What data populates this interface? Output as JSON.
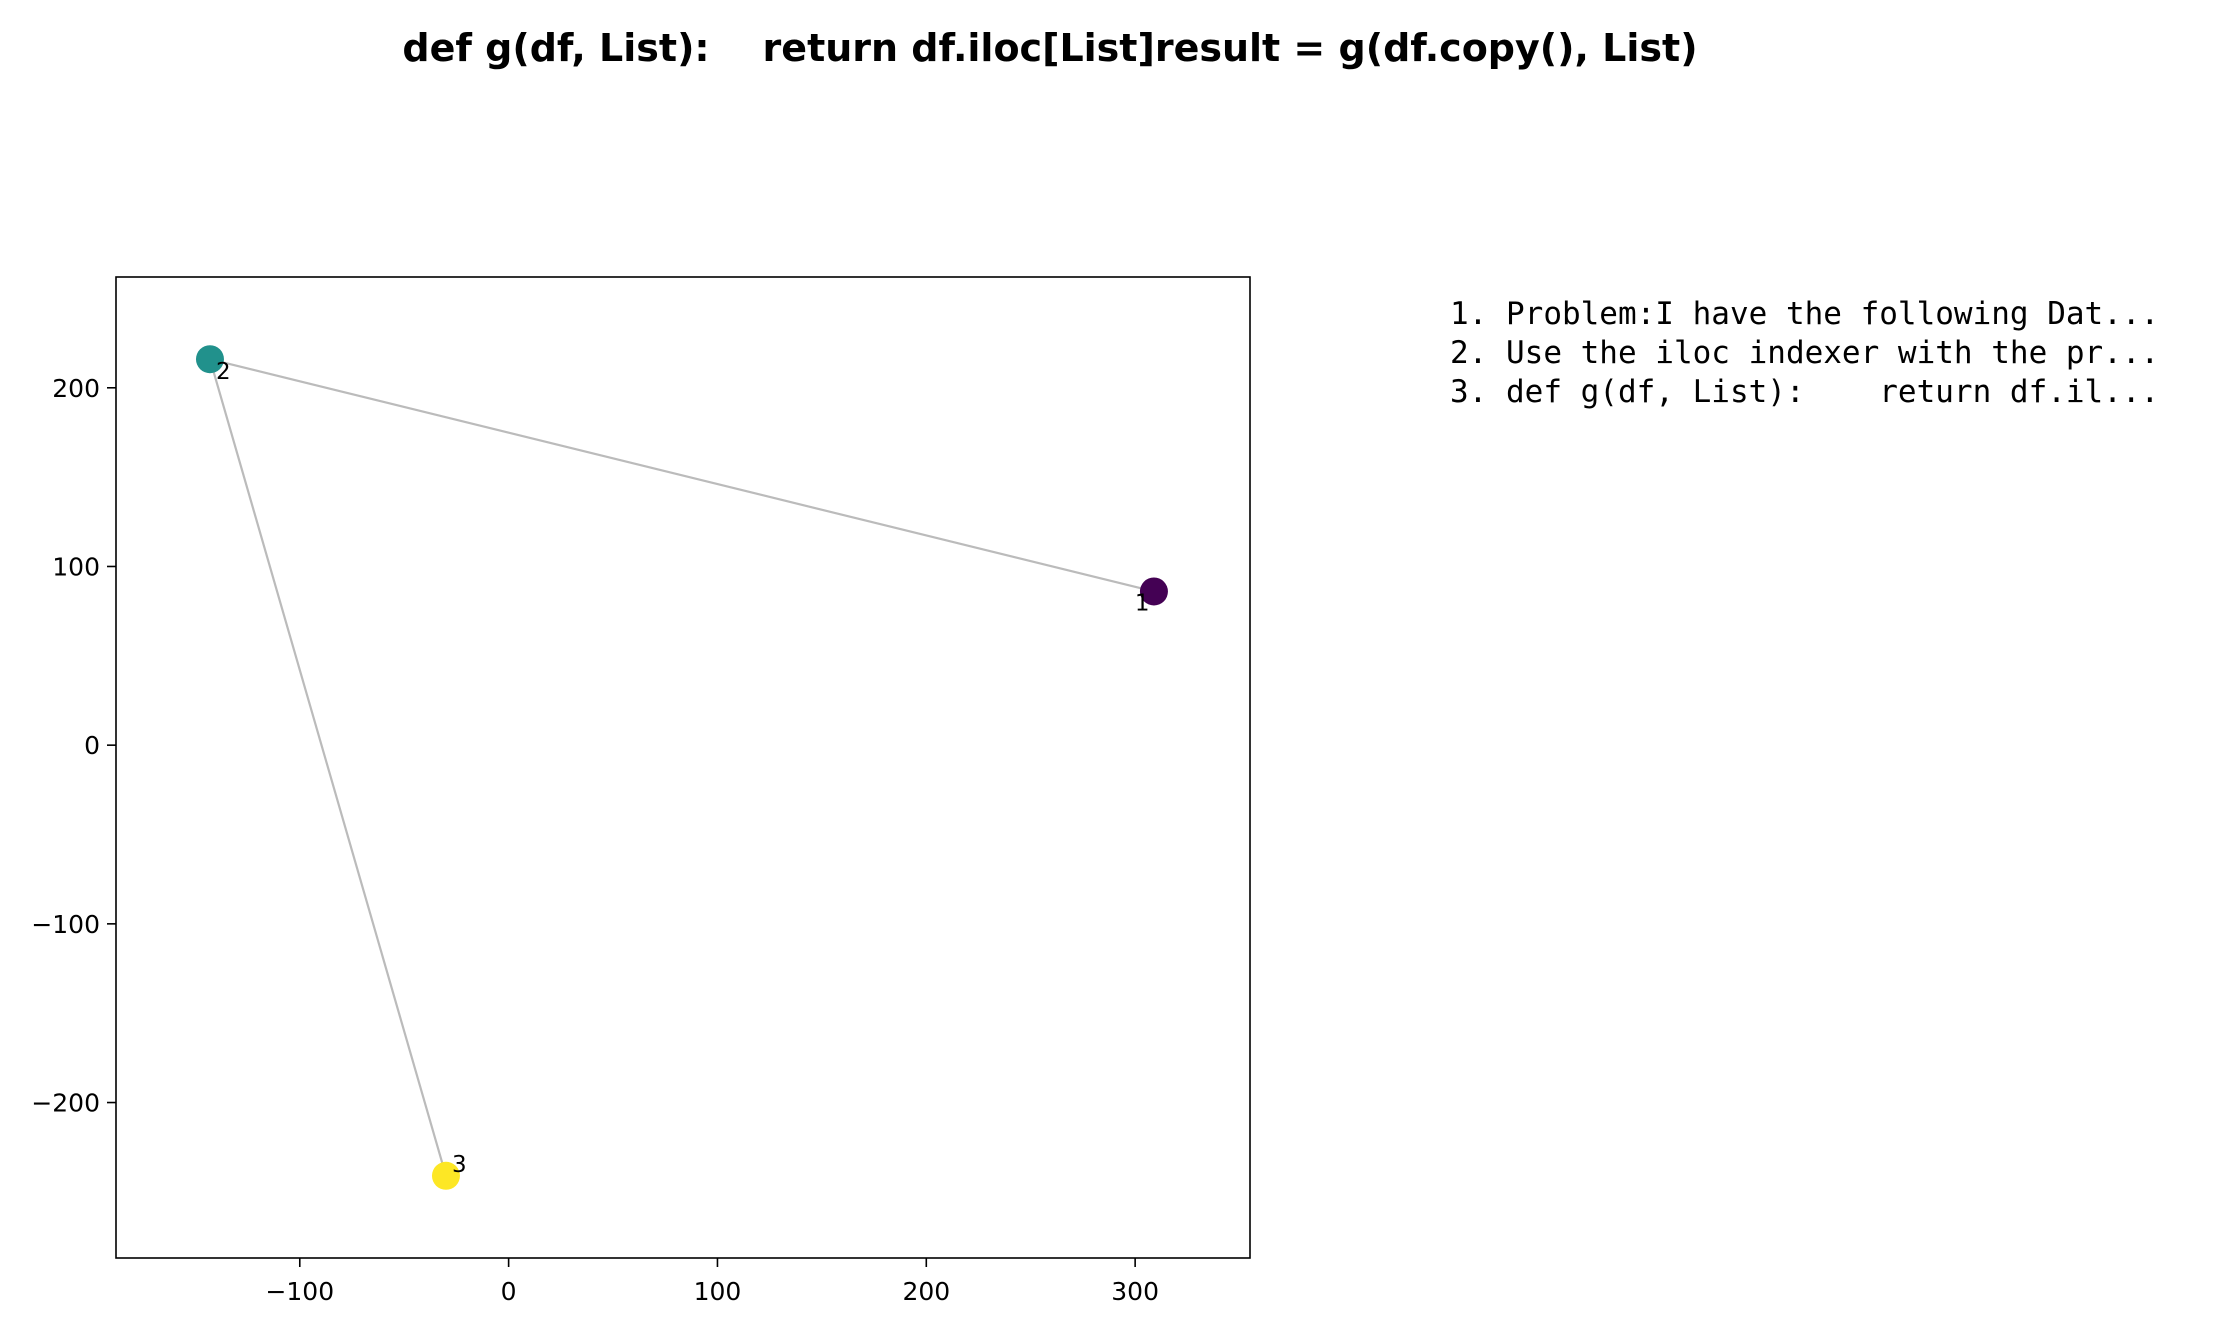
{
  "chart_data": {
    "type": "scatter",
    "title": "def g(df, List):    return df.iloc[List]result = g(df.copy(), List)",
    "xlabel": "",
    "ylabel": "",
    "xlim": [
      -188,
      355
    ],
    "ylim": [
      -287,
      262
    ],
    "xticks": [
      -100,
      0,
      100,
      200,
      300
    ],
    "yticks": [
      -200,
      -100,
      0,
      100,
      200
    ],
    "xtick_labels": [
      "−100",
      "0",
      "100",
      "200",
      "300"
    ],
    "ytick_labels": [
      "−200",
      "−100",
      "0",
      "100",
      "200"
    ],
    "grid": false,
    "points": [
      {
        "label": "1",
        "x": 309,
        "y": 86,
        "color": "#440154"
      },
      {
        "label": "2",
        "x": -143,
        "y": 216,
        "color": "#21918c"
      },
      {
        "label": "3",
        "x": -30,
        "y": -241,
        "color": "#fde725"
      }
    ],
    "edges": [
      {
        "from": 0,
        "to": 1,
        "color": "#bbbbbb"
      },
      {
        "from": 1,
        "to": 2,
        "color": "#bbbbbb"
      }
    ],
    "annotations": [
      "1. Problem:I have the following Dat...",
      "2. Use the iloc indexer with the pr...",
      "3. def g(df, List):    return df.il..."
    ]
  }
}
